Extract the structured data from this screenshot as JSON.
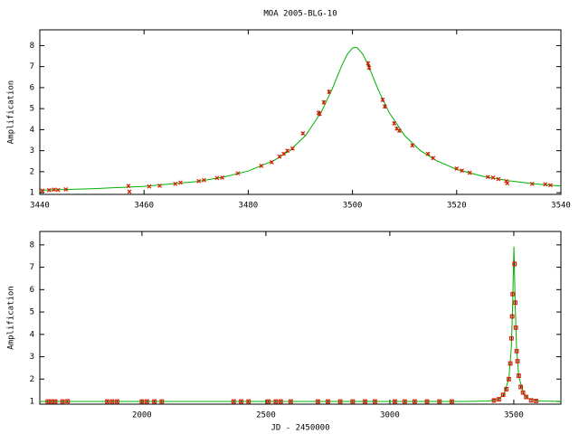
{
  "chart_data": [
    {
      "type": "line",
      "title": "MOA 2005-BLG-10",
      "ylabel": "Amplification",
      "xlim": [
        3440,
        3540
      ],
      "xticks": [
        3440,
        3460,
        3480,
        3500,
        3520,
        3540
      ],
      "ylim": [
        0.92,
        8.75
      ],
      "yticks": [
        1,
        2,
        3,
        4,
        5,
        6,
        7,
        8
      ],
      "series": [
        {
          "type": "line",
          "color": "#00b000",
          "x": [
            3440,
            3450,
            3460,
            3470,
            3475,
            3480,
            3485,
            3488,
            3491,
            3494,
            3496,
            3498,
            3499,
            3500,
            3500.5,
            3501,
            3502,
            3503,
            3505,
            3507,
            3510,
            3513,
            3516,
            3520,
            3525,
            3530,
            3535,
            3540
          ],
          "values": [
            1.12,
            1.19,
            1.3,
            1.53,
            1.73,
            2.03,
            2.54,
            3.01,
            3.72,
            4.83,
            5.87,
            7.08,
            7.58,
            7.88,
            7.92,
            7.88,
            7.58,
            7.08,
            5.87,
            4.83,
            3.72,
            3.01,
            2.54,
            2.11,
            1.78,
            1.57,
            1.42,
            1.32
          ]
        },
        {
          "type": "scatter",
          "color": "#e02000",
          "marker": "x",
          "x": [
            3440.5,
            3441.8,
            3442.7,
            3443.5,
            3445,
            3457,
            3457.2,
            3461,
            3463,
            3466,
            3467,
            3470.5,
            3471.5,
            3474,
            3475,
            3478,
            3482.5,
            3484.5,
            3486,
            3486.8,
            3487.5,
            3488.5,
            3490.5,
            3493.5,
            3493.7,
            3494.5,
            3495.5,
            3503,
            3503.2,
            3505.8,
            3506.2,
            3508,
            3508.5,
            3509,
            3511.5,
            3514.5,
            3515.5,
            3520,
            3521,
            3522.5,
            3526,
            3527,
            3528,
            3529.5,
            3529.7,
            3534.5,
            3537,
            3538
          ],
          "values": [
            1.1,
            1.12,
            1.15,
            1.13,
            1.16,
            1.32,
            1.05,
            1.3,
            1.33,
            1.42,
            1.48,
            1.55,
            1.6,
            1.7,
            1.72,
            1.92,
            2.28,
            2.45,
            2.72,
            2.85,
            3.0,
            3.1,
            3.82,
            4.8,
            4.75,
            5.3,
            5.8,
            7.15,
            6.95,
            5.42,
            5.1,
            4.3,
            4.05,
            3.95,
            3.25,
            2.85,
            2.65,
            2.15,
            2.05,
            1.95,
            1.75,
            1.72,
            1.65,
            1.55,
            1.45,
            1.42,
            1.4,
            1.36
          ],
          "errors": [
            0.05,
            0.05,
            0.05,
            0.05,
            0.05,
            0.06,
            0.06,
            0.05,
            0.05,
            0.05,
            0.05,
            0.05,
            0.05,
            0.05,
            0.05,
            0.05,
            0.06,
            0.06,
            0.07,
            0.07,
            0.07,
            0.07,
            0.08,
            0.1,
            0.1,
            0.1,
            0.1,
            0.12,
            0.12,
            0.1,
            0.1,
            0.09,
            0.09,
            0.09,
            0.08,
            0.07,
            0.07,
            0.06,
            0.06,
            0.06,
            0.05,
            0.05,
            0.05,
            0.05,
            0.05,
            0.05,
            0.05,
            0.05
          ]
        }
      ]
    },
    {
      "type": "line",
      "ylabel": "Amplification",
      "xlabel": "JD - 2450000",
      "xlim": [
        1588,
        3690
      ],
      "xticks": [
        2000,
        2500,
        3000,
        3500
      ],
      "ylim": [
        0.88,
        8.6
      ],
      "yticks": [
        1,
        2,
        3,
        4,
        5,
        6,
        7,
        8
      ],
      "series": [
        {
          "type": "line",
          "color": "#00b000",
          "x": [
            1588,
            2500,
            3300,
            3400,
            3440,
            3460,
            3480,
            3490,
            3495,
            3500.5,
            3506,
            3511,
            3520,
            3540,
            3560,
            3600,
            3690
          ],
          "values": [
            1.0,
            1.0,
            1.003,
            1.02,
            1.12,
            1.3,
            2.03,
            3.4,
            5.2,
            7.92,
            5.2,
            3.4,
            2.11,
            1.32,
            1.125,
            1.02,
            1.005
          ]
        },
        {
          "type": "scatter",
          "color": "#e02000",
          "marker": "square",
          "x": [
            1620,
            1635,
            1650,
            1680,
            1700,
            1860,
            1880,
            1900,
            2000,
            2020,
            2050,
            2080,
            2370,
            2400,
            2430,
            2510,
            2540,
            2560,
            2600,
            2710,
            2750,
            2800,
            2850,
            2900,
            2940,
            3020,
            3060,
            3100,
            3150,
            3200,
            3250,
            3420,
            3440,
            3457,
            3470,
            3480,
            3486,
            3490.5,
            3493.5,
            3495.5,
            3503,
            3505.8,
            3508,
            3511.5,
            3515,
            3520,
            3528,
            3537,
            3550,
            3570,
            3590
          ],
          "values": [
            1.0,
            1.0,
            1.0,
            1.0,
            1.01,
            1.0,
            1.0,
            1.0,
            1.0,
            1.0,
            1.0,
            1.0,
            1.0,
            1.0,
            1.0,
            1.0,
            1.0,
            1.0,
            1.0,
            1.0,
            1.0,
            1.0,
            1.0,
            1.0,
            1.0,
            1.0,
            1.0,
            1.0,
            1.0,
            1.0,
            1.0,
            1.05,
            1.1,
            1.3,
            1.55,
            2.0,
            2.7,
            3.82,
            4.8,
            5.8,
            7.15,
            5.42,
            4.3,
            3.25,
            2.8,
            2.15,
            1.65,
            1.4,
            1.2,
            1.05,
            1.02
          ],
          "errors": [
            0.04,
            0.04,
            0.04,
            0.04,
            0.04,
            0.04,
            0.04,
            0.04,
            0.04,
            0.04,
            0.04,
            0.04,
            0.04,
            0.04,
            0.04,
            0.04,
            0.04,
            0.04,
            0.04,
            0.04,
            0.04,
            0.04,
            0.04,
            0.04,
            0.04,
            0.04,
            0.04,
            0.04,
            0.04,
            0.04,
            0.04,
            0.05,
            0.05,
            0.06,
            0.05,
            0.06,
            0.07,
            0.08,
            0.1,
            0.1,
            0.12,
            0.1,
            0.09,
            0.08,
            0.07,
            0.06,
            0.05,
            0.05,
            0.05,
            0.04,
            0.04
          ]
        }
      ]
    }
  ]
}
